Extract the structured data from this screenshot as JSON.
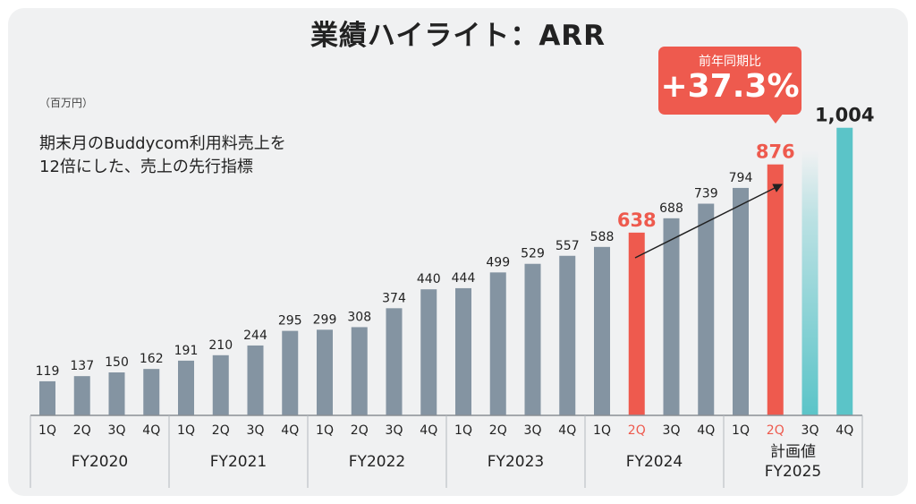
{
  "title": "業績ハイライト：ARR",
  "unit_label": "（百万円）",
  "description": "期末月のBuddycom利用料売上を\n12倍にした、売上の先行指標",
  "yoy": {
    "label": "前年同期比",
    "value": "+37.3%"
  },
  "colors": {
    "actual": "#8494a2",
    "highlight": "#ee5a4e",
    "plan": "#5bc4c8",
    "label": "#222222"
  },
  "chart_data": {
    "type": "bar",
    "title": "業績ハイライト：ARR",
    "ylabel": "（百万円）",
    "categories": [
      "1Q",
      "2Q",
      "3Q",
      "4Q",
      "1Q",
      "2Q",
      "3Q",
      "4Q",
      "1Q",
      "2Q",
      "3Q",
      "4Q",
      "1Q",
      "2Q",
      "3Q",
      "4Q",
      "1Q",
      "2Q",
      "3Q",
      "4Q",
      "1Q",
      "2Q",
      "3Q",
      "4Q"
    ],
    "values": [
      119,
      137,
      150,
      162,
      191,
      210,
      244,
      295,
      299,
      308,
      374,
      440,
      444,
      499,
      529,
      557,
      588,
      638,
      688,
      739,
      794,
      876,
      null,
      1004
    ],
    "value_labels": [
      "119",
      "137",
      "150",
      "162",
      "191",
      "210",
      "244",
      "295",
      "299",
      "308",
      "374",
      "440",
      "444",
      "499",
      "529",
      "557",
      "588",
      "638",
      "688",
      "739",
      "794",
      "876",
      "",
      "1,004"
    ],
    "highlight": [
      false,
      false,
      false,
      false,
      false,
      false,
      false,
      false,
      false,
      false,
      false,
      false,
      false,
      false,
      false,
      false,
      false,
      true,
      false,
      false,
      false,
      true,
      false,
      false
    ],
    "plan": [
      false,
      false,
      false,
      false,
      false,
      false,
      false,
      false,
      false,
      false,
      false,
      false,
      false,
      false,
      false,
      false,
      false,
      false,
      false,
      false,
      false,
      false,
      true,
      true
    ],
    "groups": [
      {
        "name": "FY2020",
        "count": 4
      },
      {
        "name": "FY2021",
        "count": 4
      },
      {
        "name": "FY2022",
        "count": 4
      },
      {
        "name": "FY2023",
        "count": 4
      },
      {
        "name": "FY2024",
        "count": 4
      },
      {
        "name": "計画値\nFY2025",
        "count": 4
      }
    ],
    "ylim": [
      0,
      1100
    ],
    "grid": false
  }
}
